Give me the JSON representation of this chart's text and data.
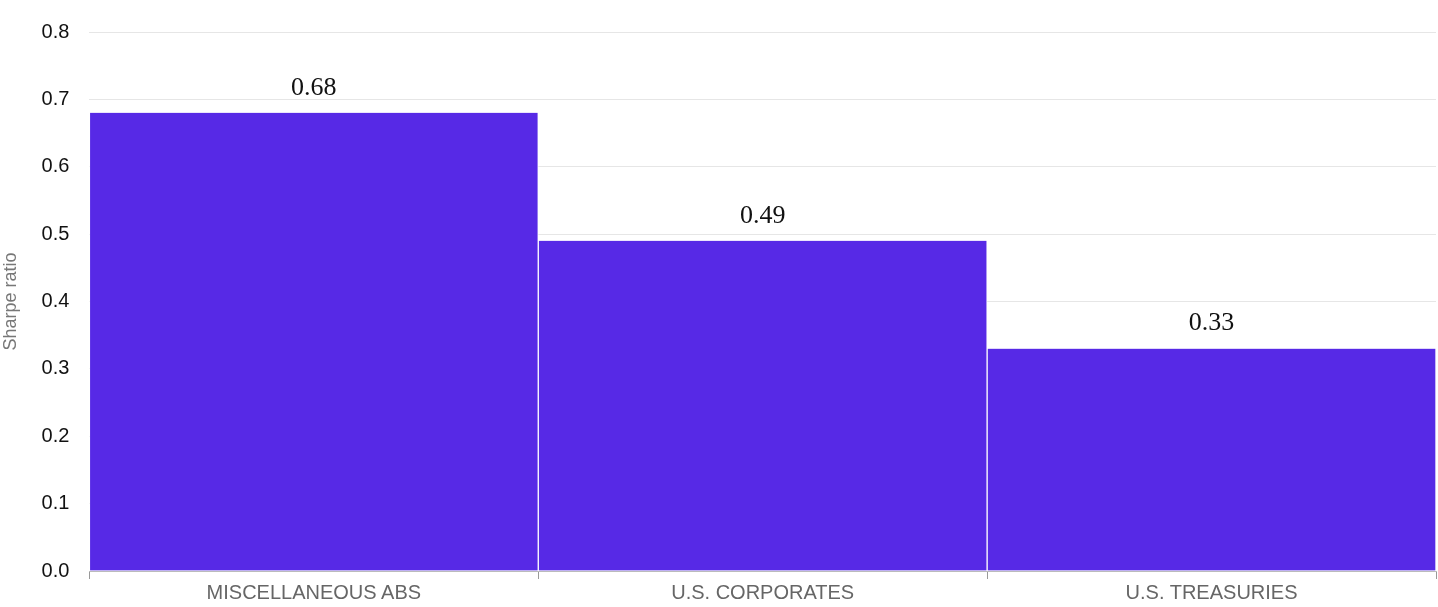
{
  "chart_data": {
    "type": "bar",
    "ylabel": "Sharpe ratio",
    "categories": [
      "MISCELLANEOUS ABS",
      "U.S. CORPORATES",
      "U.S. TREASURIES"
    ],
    "values": [
      0.68,
      0.49,
      0.33
    ],
    "color": "#5729e6",
    "ylim": [
      0,
      0.8
    ],
    "yticks": [
      {
        "value": 0,
        "label": "0.0"
      },
      0.1,
      0.2,
      0.3,
      0.4,
      0.5,
      0.6,
      0.7,
      0.8
    ],
    "grid": "y",
    "data_labels": true,
    "legend": false
  }
}
